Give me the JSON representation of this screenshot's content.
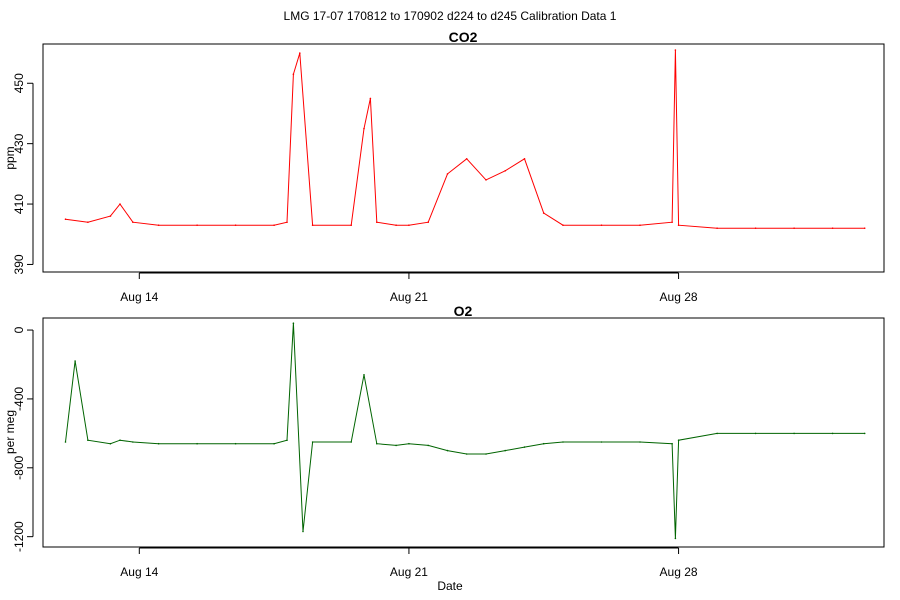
{
  "suptitle": "LMG   17-07    170812 to 170902    d224 to d245   Calibration Data 1",
  "xlabel": "Date",
  "chart_data": [
    {
      "type": "line",
      "title": "CO2",
      "ylabel": "ppm",
      "color": "#ff0000",
      "xlim": [
        "2017-08-11 12:00",
        "2017-09-02 08:00"
      ],
      "ylim": [
        387.5,
        463
      ],
      "x_ticks": [
        "Aug 14",
        "Aug 21",
        "Aug 28"
      ],
      "y_ticks": [
        390,
        410,
        430,
        450
      ],
      "grid": false,
      "legend": "none",
      "series": [
        {
          "x": [
            "2017-08-12 02:00",
            "2017-08-12 16:00",
            "2017-08-13 06:00",
            "2017-08-13 12:00",
            "2017-08-13 20:00",
            "2017-08-14 12:00",
            "2017-08-15 12:00",
            "2017-08-16 12:00",
            "2017-08-17 12:00",
            "2017-08-17 20:00",
            "2017-08-18 00:00",
            "2017-08-18 04:00",
            "2017-08-18 12:00",
            "2017-08-19 12:00",
            "2017-08-19 20:00",
            "2017-08-20 00:00",
            "2017-08-20 04:00",
            "2017-08-20 16:00",
            "2017-08-21 00:00",
            "2017-08-21 12:00",
            "2017-08-22 00:00",
            "2017-08-22 12:00",
            "2017-08-23 00:00",
            "2017-08-23 12:00",
            "2017-08-24 00:00",
            "2017-08-24 12:00",
            "2017-08-25 00:00",
            "2017-08-26 00:00",
            "2017-08-27 00:00",
            "2017-08-27 20:00",
            "2017-08-27 22:00",
            "2017-08-28 00:00",
            "2017-08-29 00:00",
            "2017-08-30 00:00",
            "2017-08-31 00:00",
            "2017-09-01 00:00",
            "2017-09-01 20:00"
          ],
          "y": [
            405,
            404,
            406,
            410,
            404,
            403,
            403,
            403,
            403,
            404,
            453,
            460,
            403,
            403,
            435,
            445,
            404,
            403,
            403,
            404,
            420,
            425,
            418,
            421,
            425,
            407,
            403,
            403,
            403,
            404,
            461,
            403,
            402,
            402,
            402,
            402,
            402
          ]
        }
      ]
    },
    {
      "type": "line",
      "title": "O2",
      "ylabel": "per meg",
      "color": "#006400",
      "xlim": [
        "2017-08-11 12:00",
        "2017-09-02 08:00"
      ],
      "ylim": [
        -1260,
        70
      ],
      "x_ticks": [
        "Aug 14",
        "Aug 21",
        "Aug 28"
      ],
      "y_ticks": [
        0,
        -400,
        -800,
        -1200
      ],
      "grid": false,
      "legend": "none",
      "series": [
        {
          "x": [
            "2017-08-12 02:00",
            "2017-08-12 08:00",
            "2017-08-12 16:00",
            "2017-08-13 06:00",
            "2017-08-13 12:00",
            "2017-08-13 20:00",
            "2017-08-14 12:00",
            "2017-08-15 12:00",
            "2017-08-16 12:00",
            "2017-08-17 12:00",
            "2017-08-17 20:00",
            "2017-08-18 00:00",
            "2017-08-18 06:00",
            "2017-08-18 12:00",
            "2017-08-19 12:00",
            "2017-08-19 20:00",
            "2017-08-20 04:00",
            "2017-08-20 16:00",
            "2017-08-21 00:00",
            "2017-08-21 12:00",
            "2017-08-22 00:00",
            "2017-08-22 12:00",
            "2017-08-23 00:00",
            "2017-08-23 12:00",
            "2017-08-24 00:00",
            "2017-08-24 12:00",
            "2017-08-25 00:00",
            "2017-08-26 00:00",
            "2017-08-27 00:00",
            "2017-08-27 20:00",
            "2017-08-27 22:00",
            "2017-08-28 00:00",
            "2017-08-29 00:00",
            "2017-08-30 00:00",
            "2017-08-31 00:00",
            "2017-09-01 00:00",
            "2017-09-01 20:00"
          ],
          "y": [
            -650,
            -180,
            -640,
            -660,
            -640,
            -650,
            -660,
            -660,
            -660,
            -660,
            -640,
            40,
            -1170,
            -650,
            -650,
            -260,
            -660,
            -670,
            -660,
            -670,
            -700,
            -720,
            -720,
            -700,
            -680,
            -660,
            -650,
            -650,
            -650,
            -660,
            -1210,
            -640,
            -600,
            -600,
            -600,
            -600,
            -600
          ]
        }
      ]
    }
  ]
}
